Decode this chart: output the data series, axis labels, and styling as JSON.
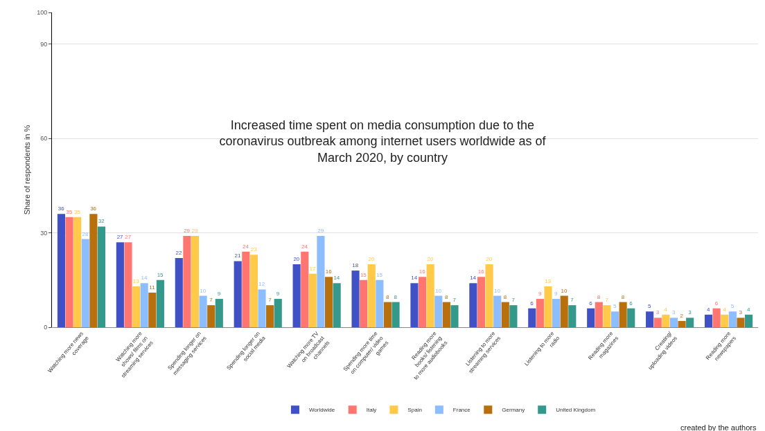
{
  "chart_data": {
    "type": "bar",
    "title": "Increased time spent on media consumption due to the coronavirus outbreak among internet users worldwide as of March 2020, by country",
    "ylabel": "Share of respondents in %",
    "annotations": [
      "created by the authors"
    ],
    "categories": [
      "Watching more news coverage",
      "Watching more shows/ films on streaming services",
      "Spending longer on messaging services",
      "Spending longer on social media",
      "Watching more TV on broadcast channels",
      "Spending more time on computer/ video games",
      "Reading more books/ listening to more audiobooks",
      "Listening to more streaming services",
      "Listening to more radio",
      "Reading more magazines",
      "Creating/ uploading videos",
      "Reading more newspapers"
    ],
    "series": [
      {
        "name": "Worldwide",
        "color": "#3f51c5",
        "values": [
          36,
          27,
          22,
          21,
          20,
          18,
          14,
          14,
          6,
          6,
          5,
          4
        ]
      },
      {
        "name": "Italy",
        "color": "#ff7570",
        "values": [
          35,
          27,
          29,
          24,
          24,
          15,
          16,
          16,
          9,
          8,
          3,
          6
        ]
      },
      {
        "name": "Spain",
        "color": "#ffc94a",
        "values": [
          35,
          13,
          29,
          23,
          17,
          20,
          20,
          20,
          13,
          7,
          4,
          4
        ]
      },
      {
        "name": "France",
        "color": "#8cbdfe",
        "values": [
          28,
          14,
          10,
          12,
          29,
          15,
          10,
          10,
          9,
          5,
          3,
          5
        ]
      },
      {
        "name": "Germany",
        "color": "#b86f0e",
        "values": [
          36,
          11,
          7,
          7,
          16,
          8,
          8,
          8,
          10,
          8,
          2,
          3
        ]
      },
      {
        "name": "United Kingdom",
        "color": "#34998a",
        "values": [
          32,
          15,
          9,
          9,
          14,
          8,
          7,
          7,
          7,
          6,
          3,
          4
        ]
      }
    ],
    "ylim": [
      0,
      100
    ],
    "yticks": [
      0,
      30,
      60,
      90,
      100
    ],
    "grid": "y",
    "legend": "bottom",
    "data_labels": true
  }
}
